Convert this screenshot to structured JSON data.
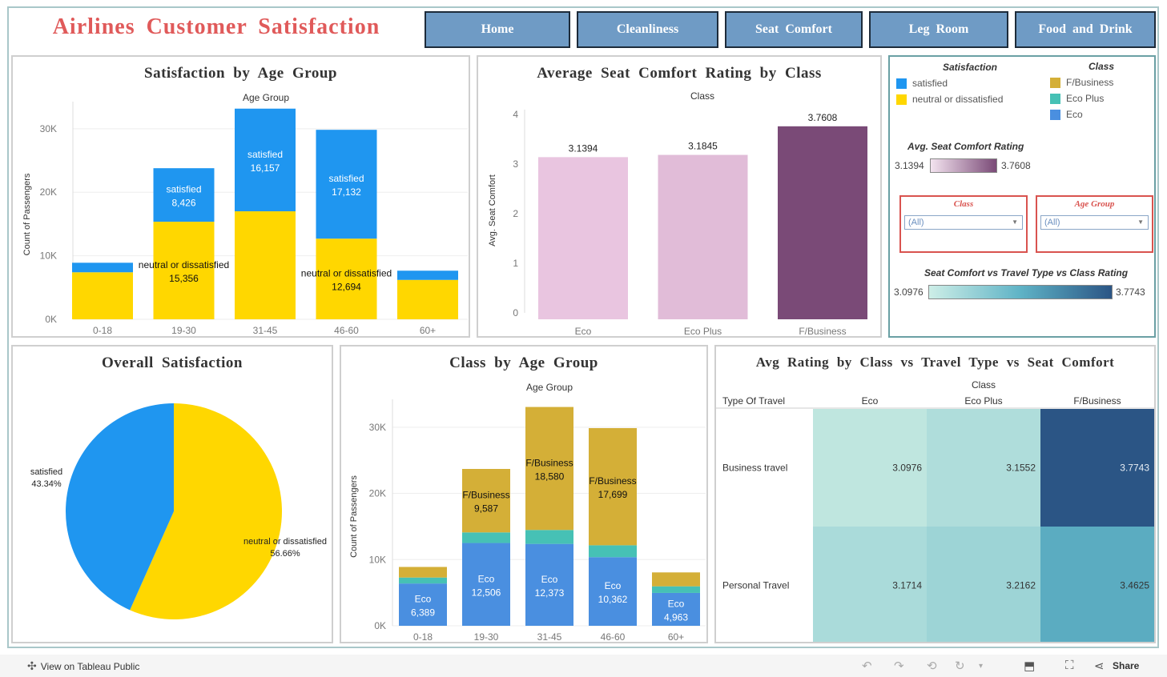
{
  "header": {
    "title": "Airlines  Customer  Satisfaction"
  },
  "nav": [
    {
      "label": "Home"
    },
    {
      "label": "Cleanliness"
    },
    {
      "label": "Seat  Comfort"
    },
    {
      "label": "Leg  Room"
    },
    {
      "label": "Food  and  Drink"
    }
  ],
  "colors": {
    "satisfied": "#1f96f0",
    "neutral": "#ffd700",
    "fbusiness": "#d4af37",
    "ecoplus": "#46c1b5",
    "eco": "#4a8fe0",
    "seat_low": "#e9c5e0",
    "seat_high": "#7a4a77",
    "heat_low": "#bfe6df",
    "heat_high": "#2b5585"
  },
  "chart_data": [
    {
      "id": "satisfaction_by_age",
      "type": "bar",
      "title": "Satisfaction  by  Age  Group",
      "top_label": "Age Group",
      "ylabel": "Count of Passengers",
      "categories": [
        "0-18",
        "19-30",
        "31-45",
        "46-60",
        "60+"
      ],
      "ylim": [
        0,
        33000
      ],
      "yticks": [
        0,
        10000,
        20000,
        30000
      ],
      "ytick_labels": [
        "0K",
        "10K",
        "20K",
        "30K"
      ],
      "stacked": true,
      "series": [
        {
          "name": "neutral or dissatisfied",
          "values": [
            7400,
            15356,
            17000,
            12694,
            6200
          ]
        },
        {
          "name": "satisfied",
          "values": [
            1500,
            8426,
            16157,
            17132,
            1450
          ]
        }
      ],
      "annotations": [
        {
          "category": "19-30",
          "series": "satisfied",
          "text": "satisfied",
          "value": "8,426"
        },
        {
          "category": "31-45",
          "series": "satisfied",
          "text": "satisfied",
          "value": "16,157"
        },
        {
          "category": "46-60",
          "series": "satisfied",
          "text": "satisfied",
          "value": "17,132"
        },
        {
          "category": "19-30",
          "series": "neutral or dissatisfied",
          "text": "neutral or dissatisfied",
          "value": "15,356"
        },
        {
          "category": "46-60",
          "series": "neutral or dissatisfied",
          "text": "neutral or dissatisfied",
          "value": "12,694"
        }
      ]
    },
    {
      "id": "seat_comfort_by_class",
      "type": "bar",
      "title": "Average  Seat  Comfort  Rating  by  Class",
      "top_label": "Class",
      "ylabel": "Avg. Seat Comfort",
      "categories": [
        "Eco",
        "Eco Plus",
        "F/Business"
      ],
      "values": [
        3.1394,
        3.1845,
        3.7608
      ],
      "value_labels": [
        "3.1394",
        "3.1845",
        "3.7608"
      ],
      "ylim": [
        0,
        4
      ],
      "yticks": [
        0,
        1,
        2,
        3,
        4
      ]
    },
    {
      "id": "overall_satisfaction",
      "type": "pie",
      "title": "Overall  Satisfaction",
      "slices": [
        {
          "label": "satisfied",
          "pct_label": "43.34%",
          "value": 43.34
        },
        {
          "label": "neutral or dissatisfied",
          "pct_label": "56.66%",
          "value": 56.66
        }
      ]
    },
    {
      "id": "class_by_age",
      "type": "bar",
      "title": "Class  by  Age  Group",
      "top_label": "Age Group",
      "ylabel": "Count of Passengers",
      "categories": [
        "0-18",
        "19-30",
        "31-45",
        "46-60",
        "60+"
      ],
      "ylim": [
        0,
        33000
      ],
      "yticks": [
        0,
        10000,
        20000,
        30000
      ],
      "ytick_labels": [
        "0K",
        "10K",
        "20K",
        "30K"
      ],
      "stacked": true,
      "series": [
        {
          "name": "Eco",
          "values": [
            6389,
            12506,
            12373,
            10362,
            4963
          ]
        },
        {
          "name": "Eco Plus",
          "values": [
            900,
            1600,
            2100,
            1800,
            1000
          ]
        },
        {
          "name": "F/Business",
          "values": [
            1600,
            9587,
            18580,
            17699,
            2100
          ]
        }
      ],
      "annotations": [
        {
          "category": "0-18",
          "series": "Eco",
          "text": "Eco",
          "value": "6,389"
        },
        {
          "category": "19-30",
          "series": "Eco",
          "text": "Eco",
          "value": "12,506"
        },
        {
          "category": "31-45",
          "series": "Eco",
          "text": "Eco",
          "value": "12,373"
        },
        {
          "category": "46-60",
          "series": "Eco",
          "text": "Eco",
          "value": "10,362"
        },
        {
          "category": "60+",
          "series": "Eco",
          "text": "Eco",
          "value": "4,963"
        },
        {
          "category": "19-30",
          "series": "F/Business",
          "text": "F/Business",
          "value": "9,587"
        },
        {
          "category": "31-45",
          "series": "F/Business",
          "text": "F/Business",
          "value": "18,580"
        },
        {
          "category": "46-60",
          "series": "F/Business",
          "text": "F/Business",
          "value": "17,699"
        }
      ]
    },
    {
      "id": "rating_heatmap",
      "type": "heatmap",
      "title": "Avg  Rating  by  Class  vs  Travel  Type  vs  Seat  Comfort",
      "col_header": "Class",
      "row_header": "Type Of Travel",
      "columns": [
        "Eco",
        "Eco Plus",
        "F/Business"
      ],
      "rows": [
        "Business travel",
        "Personal Travel"
      ],
      "values": [
        [
          3.0976,
          3.1552,
          3.7743
        ],
        [
          3.1714,
          3.2162,
          3.4625
        ]
      ],
      "value_labels": [
        [
          "3.0976",
          "3.1552",
          "3.7743"
        ],
        [
          "3.1714",
          "3.2162",
          "3.4625"
        ]
      ],
      "range": [
        3.0976,
        3.7743
      ]
    }
  ],
  "legend": {
    "satisfaction_title": "Satisfaction",
    "satisfaction_items": [
      "satisfied",
      "neutral or dissatisfied"
    ],
    "class_title": "Class",
    "class_items": [
      "F/Business",
      "Eco Plus",
      "Eco"
    ],
    "seat_title": "Avg. Seat Comfort Rating",
    "seat_min": "3.1394",
    "seat_max": "3.7608",
    "filter_class_label": "Class",
    "filter_class_value": "(All)",
    "filter_age_label": "Age  Group",
    "filter_age_value": "(All)",
    "heat_title": "Seat Comfort vs Travel Type vs Class Rating",
    "heat_min": "3.0976",
    "heat_max": "3.7743"
  },
  "footer": {
    "view_label": "View on Tableau Public",
    "share_label": "Share"
  }
}
